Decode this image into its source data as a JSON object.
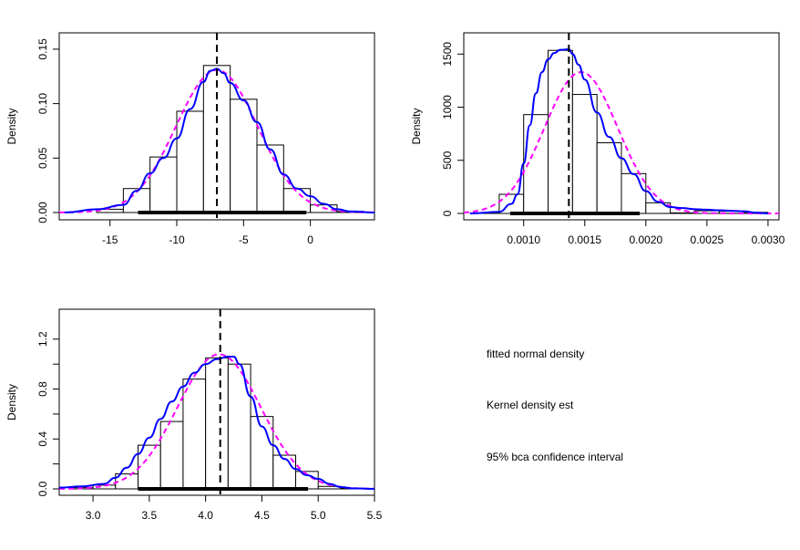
{
  "chart_data": [
    {
      "type": "histogram",
      "title": "",
      "xlabel": "",
      "ylabel": "Density",
      "xlim": [
        -18.8,
        4.8
      ],
      "ylim": [
        0,
        0.165
      ],
      "x_ticks": [
        -15,
        -10,
        -5,
        0
      ],
      "y_ticks": [
        0.0,
        0.05,
        0.1,
        0.15
      ],
      "y_tick_labels": [
        "0.00",
        "0.05",
        "0.10",
        "0.15"
      ],
      "x_tick_labels": [
        "-15",
        "-10",
        "-5",
        "0"
      ],
      "bins": [
        -16,
        -14,
        -12,
        -10,
        -8,
        -6,
        -4,
        -2,
        0,
        2,
        4
      ],
      "density": [
        0.003,
        0.022,
        0.051,
        0.093,
        0.135,
        0.104,
        0.062,
        0.022,
        0.007,
        0.001
      ],
      "estimate": -7.0,
      "ci_95_bca": [
        -12.9,
        -0.3
      ],
      "normal_fit": {
        "mean": -7.0,
        "sd": 3.05
      },
      "kde": {
        "x": [
          -18.4,
          -16,
          -14,
          -13,
          -12,
          -11,
          -10,
          -9,
          -8,
          -7.5,
          -7,
          -6.5,
          -6,
          -5,
          -4,
          -3,
          -2,
          -1,
          0,
          1,
          2,
          3,
          4.8
        ],
        "y": [
          0.0,
          0.003,
          0.007,
          0.02,
          0.036,
          0.05,
          0.068,
          0.095,
          0.12,
          0.13,
          0.132,
          0.128,
          0.119,
          0.103,
          0.083,
          0.058,
          0.035,
          0.022,
          0.015,
          0.008,
          0.003,
          0.001,
          0.0
        ]
      },
      "grid": false
    },
    {
      "type": "histogram",
      "title": "",
      "xlabel": "",
      "ylabel": "Density",
      "xlim": [
        0.00051,
        0.00309
      ],
      "ylim": [
        0,
        1700
      ],
      "x_ticks": [
        0.001,
        0.0015,
        0.002,
        0.0025,
        0.003
      ],
      "x_tick_labels": [
        "0.0010",
        "0.0015",
        "0.0020",
        "0.0025",
        "0.0030"
      ],
      "y_ticks": [
        0,
        500,
        1000,
        1500
      ],
      "y_tick_labels": [
        "0",
        "500",
        "1000",
        "1500"
      ],
      "bins": [
        0.0006,
        0.0008,
        0.001,
        0.0012,
        0.0014,
        0.0016,
        0.0018,
        0.002,
        0.0022,
        0.0024,
        0.0026,
        0.0028,
        0.003
      ],
      "density": [
        5,
        180,
        930,
        1535,
        1120,
        665,
        375,
        100,
        5,
        25,
        20,
        10
      ],
      "estimate": 0.00137,
      "ci_95_bca": [
        0.00089,
        0.00195
      ],
      "normal_fit": {
        "mean": 0.00147,
        "sd": 0.0003
      },
      "kde": {
        "x": [
          0.00056,
          0.0008,
          0.0009,
          0.00095,
          0.001,
          0.00105,
          0.0011,
          0.00115,
          0.0012,
          0.00125,
          0.0013,
          0.00137,
          0.0014,
          0.00145,
          0.0015,
          0.0016,
          0.0017,
          0.0018,
          0.0019,
          0.002,
          0.0021,
          0.0022,
          0.0023,
          0.0024,
          0.0025,
          0.0026,
          0.0027,
          0.0028,
          0.0029,
          0.003
        ],
        "y": [
          0,
          15,
          90,
          180,
          470,
          830,
          1130,
          1330,
          1450,
          1510,
          1540,
          1545,
          1500,
          1400,
          1260,
          950,
          720,
          520,
          370,
          210,
          110,
          60,
          50,
          40,
          35,
          30,
          25,
          20,
          8,
          0
        ]
      },
      "grid": false
    },
    {
      "type": "histogram",
      "title": "",
      "xlabel": "",
      "ylabel": "Density",
      "xlim": [
        2.7,
        5.5
      ],
      "ylim": [
        0,
        1.44
      ],
      "x_ticks": [
        3.0,
        3.5,
        4.0,
        4.5,
        5.0,
        5.5
      ],
      "x_tick_labels": [
        "3.0",
        "3.5",
        "4.0",
        "4.5",
        "5.0",
        "5.5"
      ],
      "y_ticks": [
        0.0,
        0.2,
        0.4,
        0.6,
        0.8,
        1.0,
        1.2
      ],
      "y_tick_labels": [
        "0.0",
        "",
        "0.4",
        "",
        "0.8",
        "",
        "1.2"
      ],
      "bins": [
        2.8,
        3.0,
        3.2,
        3.4,
        3.6,
        3.8,
        4.0,
        4.2,
        4.4,
        4.6,
        4.8,
        5.0,
        5.2,
        5.4
      ],
      "density": [
        0.01,
        0.03,
        0.12,
        0.35,
        0.54,
        0.88,
        1.05,
        1.0,
        0.58,
        0.27,
        0.14,
        0.02,
        0.005
      ],
      "estimate": 4.13,
      "ci_95_bca": [
        3.4,
        4.91
      ],
      "normal_fit": {
        "mean": 4.12,
        "sd": 0.37
      },
      "kde": {
        "x": [
          2.7,
          2.9,
          3.1,
          3.2,
          3.3,
          3.4,
          3.5,
          3.6,
          3.7,
          3.8,
          3.9,
          4.0,
          4.1,
          4.2,
          4.25,
          4.3,
          4.4,
          4.5,
          4.6,
          4.7,
          4.8,
          4.9,
          5.0,
          5.1,
          5.2,
          5.3,
          5.5
        ],
        "y": [
          0.01,
          0.02,
          0.04,
          0.09,
          0.17,
          0.28,
          0.41,
          0.56,
          0.7,
          0.82,
          0.93,
          1.0,
          1.04,
          1.06,
          1.06,
          1.0,
          0.74,
          0.5,
          0.35,
          0.24,
          0.16,
          0.11,
          0.08,
          0.04,
          0.015,
          0.005,
          0.0
        ]
      },
      "grid": false
    }
  ],
  "legend": {
    "items": [
      {
        "label": "fitted normal density",
        "color": "#ff00ff",
        "style": "dashed"
      },
      {
        "label": "Kernel density est",
        "color": "#0000ff",
        "style": "solid"
      },
      {
        "label": "95% bca confidence interval",
        "color": "#000000",
        "style": "thick"
      }
    ]
  },
  "colors": {
    "normal_fit": "#ff00ff",
    "kde": "#0000ff",
    "estimate_line": "#000000",
    "ci_bar": "#000000"
  }
}
